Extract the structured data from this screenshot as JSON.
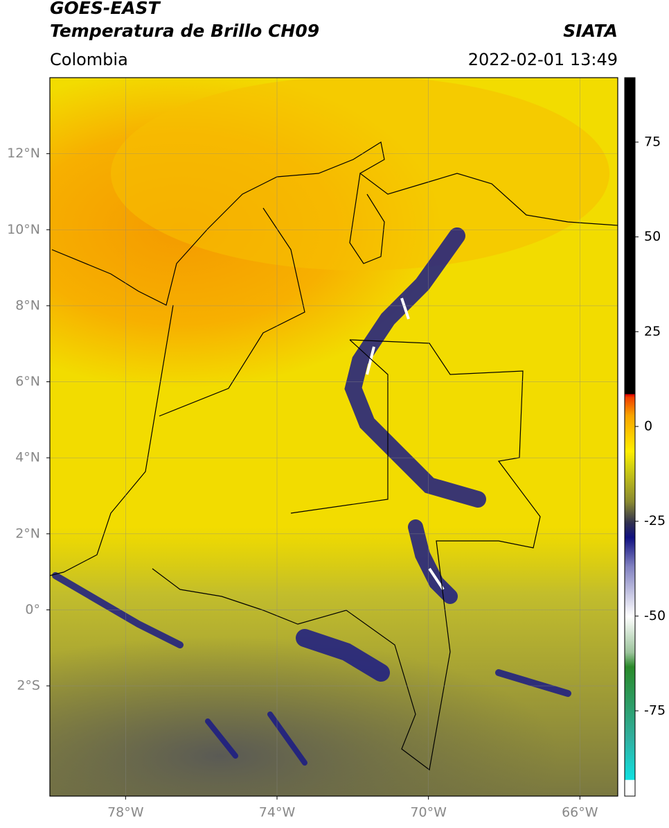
{
  "header": {
    "title": "GOES-EAST",
    "subtitle": "Temperatura de Brillo CH09",
    "region": "Colombia",
    "source": "SIATA",
    "datetime": "2022-02-01 13:49"
  },
  "map": {
    "lonlim": [
      -80,
      -65
    ],
    "latlim": [
      -4.9,
      14
    ],
    "lonticks": [
      {
        "value": -78,
        "label": "78°W"
      },
      {
        "value": -74,
        "label": "74°W"
      },
      {
        "value": -70,
        "label": "70°W"
      },
      {
        "value": -66,
        "label": "66°W"
      }
    ],
    "latticks": [
      {
        "value": 12,
        "label": "12°N"
      },
      {
        "value": 10,
        "label": "10°N"
      },
      {
        "value": 8,
        "label": "8°N"
      },
      {
        "value": 6,
        "label": "6°N"
      },
      {
        "value": 4,
        "label": "4°N"
      },
      {
        "value": 2,
        "label": "2°N"
      },
      {
        "value": 0,
        "label": "0°"
      },
      {
        "value": -2,
        "label": "2°S"
      }
    ],
    "grid": true
  },
  "colorbar": {
    "lim": [
      -97.5,
      92
    ],
    "ticks": [
      75,
      50,
      25,
      0,
      -25,
      -50,
      -75
    ]
  }
}
